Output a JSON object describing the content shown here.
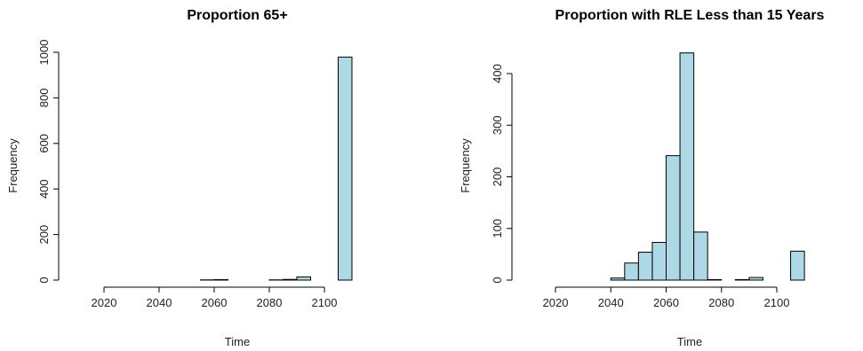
{
  "colors": {
    "bar_fill": "#add8e6",
    "bar_stroke": "#000000"
  },
  "chart_data": [
    {
      "type": "bar",
      "title": "Proportion 65+",
      "xlabel": "Time",
      "ylabel": "Frequency",
      "bin_width": 5,
      "x_ticks": [
        "2020",
        "2040",
        "2060",
        "2080",
        "2100"
      ],
      "y_ticks": [
        "0",
        "200",
        "400",
        "600",
        "800",
        "1000"
      ],
      "xlim": [
        2015,
        2110
      ],
      "ylim": [
        0,
        1000
      ],
      "bins": [
        {
          "start": 2015,
          "value": 0
        },
        {
          "start": 2020,
          "value": 0
        },
        {
          "start": 2025,
          "value": 0
        },
        {
          "start": 2030,
          "value": 0
        },
        {
          "start": 2035,
          "value": 0
        },
        {
          "start": 2040,
          "value": 0
        },
        {
          "start": 2045,
          "value": 0
        },
        {
          "start": 2050,
          "value": 0
        },
        {
          "start": 2055,
          "value": 1
        },
        {
          "start": 2060,
          "value": 2
        },
        {
          "start": 2065,
          "value": 0
        },
        {
          "start": 2070,
          "value": 0
        },
        {
          "start": 2075,
          "value": 0
        },
        {
          "start": 2080,
          "value": 1
        },
        {
          "start": 2085,
          "value": 3
        },
        {
          "start": 2090,
          "value": 14
        },
        {
          "start": 2095,
          "value": 0
        },
        {
          "start": 2100,
          "value": 0
        },
        {
          "start": 2105,
          "value": 979
        }
      ]
    },
    {
      "type": "bar",
      "title": "Proportion with RLE Less than 15 Years",
      "xlabel": "Time",
      "ylabel": "Frequency",
      "bin_width": 5,
      "x_ticks": [
        "2020",
        "2040",
        "2060",
        "2080",
        "2100"
      ],
      "y_ticks": [
        "0",
        "100",
        "200",
        "300",
        "400"
      ],
      "xlim": [
        2015,
        2110
      ],
      "ylim": [
        0,
        440
      ],
      "bins": [
        {
          "start": 2015,
          "value": 0
        },
        {
          "start": 2020,
          "value": 0
        },
        {
          "start": 2025,
          "value": 0
        },
        {
          "start": 2030,
          "value": 0
        },
        {
          "start": 2035,
          "value": 0
        },
        {
          "start": 2040,
          "value": 4
        },
        {
          "start": 2045,
          "value": 33
        },
        {
          "start": 2050,
          "value": 54
        },
        {
          "start": 2055,
          "value": 73
        },
        {
          "start": 2060,
          "value": 241
        },
        {
          "start": 2065,
          "value": 440
        },
        {
          "start": 2070,
          "value": 93
        },
        {
          "start": 2075,
          "value": 1
        },
        {
          "start": 2080,
          "value": 0
        },
        {
          "start": 2085,
          "value": 1
        },
        {
          "start": 2090,
          "value": 5
        },
        {
          "start": 2095,
          "value": 0
        },
        {
          "start": 2100,
          "value": 0
        },
        {
          "start": 2105,
          "value": 56
        }
      ]
    }
  ]
}
